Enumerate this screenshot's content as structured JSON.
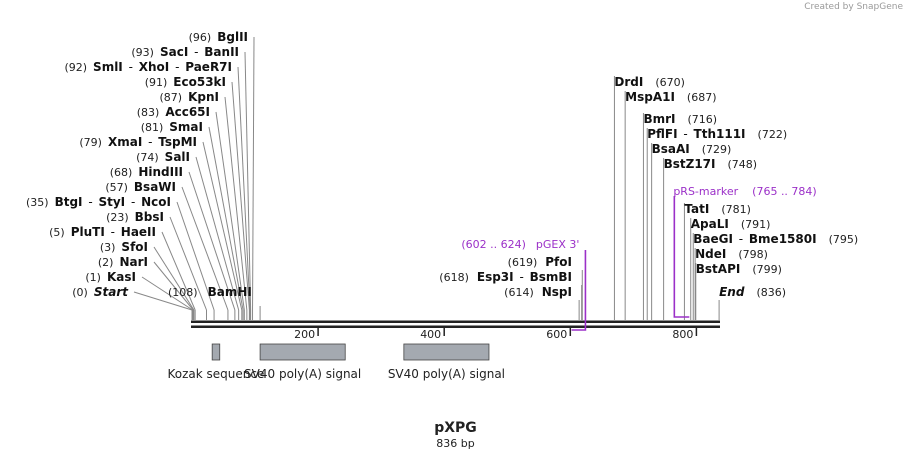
{
  "credit": {
    "prefix": "Created by",
    "brand": "SnapGene"
  },
  "plasmid": {
    "name": "pXPG",
    "length": "836 bp"
  },
  "colors": {
    "primer": "#9b30c8",
    "feature": "#a4a9b0",
    "backbone": "#222222"
  },
  "ruler": [
    {
      "pos": 200,
      "label": "200"
    },
    {
      "pos": 400,
      "label": "400"
    },
    {
      "pos": 600,
      "label": "600"
    },
    {
      "pos": 800,
      "label": "800"
    }
  ],
  "left_sites": [
    {
      "pos": 0,
      "pos_label": "(0)",
      "names": [
        "Start"
      ],
      "italic": true
    },
    {
      "pos": 1,
      "pos_label": "(1)",
      "names": [
        "KasI"
      ]
    },
    {
      "pos": 2,
      "pos_label": "(2)",
      "names": [
        "NarI"
      ]
    },
    {
      "pos": 3,
      "pos_label": "(3)",
      "names": [
        "SfoI"
      ]
    },
    {
      "pos": 5,
      "pos_label": "(5)",
      "names": [
        "PluTI",
        "HaeII"
      ]
    },
    {
      "pos": 23,
      "pos_label": "(23)",
      "names": [
        "BbsI"
      ]
    },
    {
      "pos": 35,
      "pos_label": "(35)",
      "names": [
        "BtgI",
        "StyI",
        "NcoI"
      ]
    },
    {
      "pos": 57,
      "pos_label": "(57)",
      "names": [
        "BsaWI"
      ]
    },
    {
      "pos": 68,
      "pos_label": "(68)",
      "names": [
        "HindIII"
      ]
    },
    {
      "pos": 74,
      "pos_label": "(74)",
      "names": [
        "SalI"
      ]
    },
    {
      "pos": 79,
      "pos_label": "(79)",
      "names": [
        "XmaI",
        "TspMI"
      ]
    },
    {
      "pos": 81,
      "pos_label": "(81)",
      "names": [
        "SmaI"
      ]
    },
    {
      "pos": 83,
      "pos_label": "(83)",
      "names": [
        "Acc65I"
      ]
    },
    {
      "pos": 87,
      "pos_label": "(87)",
      "names": [
        "KpnI"
      ]
    },
    {
      "pos": 91,
      "pos_label": "(91)",
      "names": [
        "Eco53kI"
      ]
    },
    {
      "pos": 92,
      "pos_label": "(92)",
      "names": [
        "SmlI",
        "XhoI",
        "PaeR7I"
      ]
    },
    {
      "pos": 93,
      "pos_label": "(93)",
      "names": [
        "SacI",
        "BanII"
      ]
    },
    {
      "pos": 96,
      "pos_label": "(96)",
      "names": [
        "BglII"
      ]
    }
  ],
  "bamhi_site": {
    "pos": 108,
    "pos_label": "(108)",
    "names": [
      "BamHI"
    ]
  },
  "mid_sites": [
    {
      "pos": 614,
      "pos_label": "(614)",
      "names": [
        "NspI"
      ]
    },
    {
      "pos": 618,
      "pos_label": "(618)",
      "names": [
        "Esp3I",
        "BsmBI"
      ]
    },
    {
      "pos": 619,
      "pos_label": "(619)",
      "names": [
        "PfoI"
      ]
    }
  ],
  "right_sites": [
    {
      "pos": 670,
      "pos_label": "(670)",
      "names": [
        "DrdI"
      ]
    },
    {
      "pos": 687,
      "pos_label": "(687)",
      "names": [
        "MspA1I"
      ]
    },
    {
      "pos": 716,
      "pos_label": "(716)",
      "names": [
        "BmrI"
      ]
    },
    {
      "pos": 722,
      "pos_label": "(722)",
      "names": [
        "PflFI",
        "Tth111I"
      ]
    },
    {
      "pos": 729,
      "pos_label": "(729)",
      "names": [
        "BsaAI"
      ]
    },
    {
      "pos": 748,
      "pos_label": "(748)",
      "names": [
        "BstZ17I"
      ]
    },
    {
      "pos": 781,
      "pos_label": "(781)",
      "names": [
        "TatI"
      ]
    },
    {
      "pos": 791,
      "pos_label": "(791)",
      "names": [
        "ApaLI"
      ]
    },
    {
      "pos": 795,
      "pos_label": "(795)",
      "names": [
        "BaeGI",
        "Bme1580I"
      ]
    },
    {
      "pos": 798,
      "pos_label": "(798)",
      "names": [
        "NdeI"
      ]
    },
    {
      "pos": 799,
      "pos_label": "(799)",
      "names": [
        "BstAPI"
      ]
    }
  ],
  "end_site": {
    "pos": 836,
    "pos_label": "(836)",
    "names": [
      "End"
    ],
    "italic": true
  },
  "primers": [
    {
      "name": "pGEX 3'",
      "range": "(602 .. 624)",
      "start": 602,
      "end": 624,
      "direction": "reverse"
    },
    {
      "name": "pRS-marker",
      "range": "(765 .. 784)",
      "start": 765,
      "end": 784,
      "direction": "forward"
    }
  ],
  "features": [
    {
      "name": "Kozak sequence",
      "start": 32,
      "end": 44
    },
    {
      "name": "SV40 poly(A) signal",
      "start": 108,
      "end": 243
    },
    {
      "name": "SV40 poly(A) signal",
      "start": 336,
      "end": 471
    }
  ]
}
